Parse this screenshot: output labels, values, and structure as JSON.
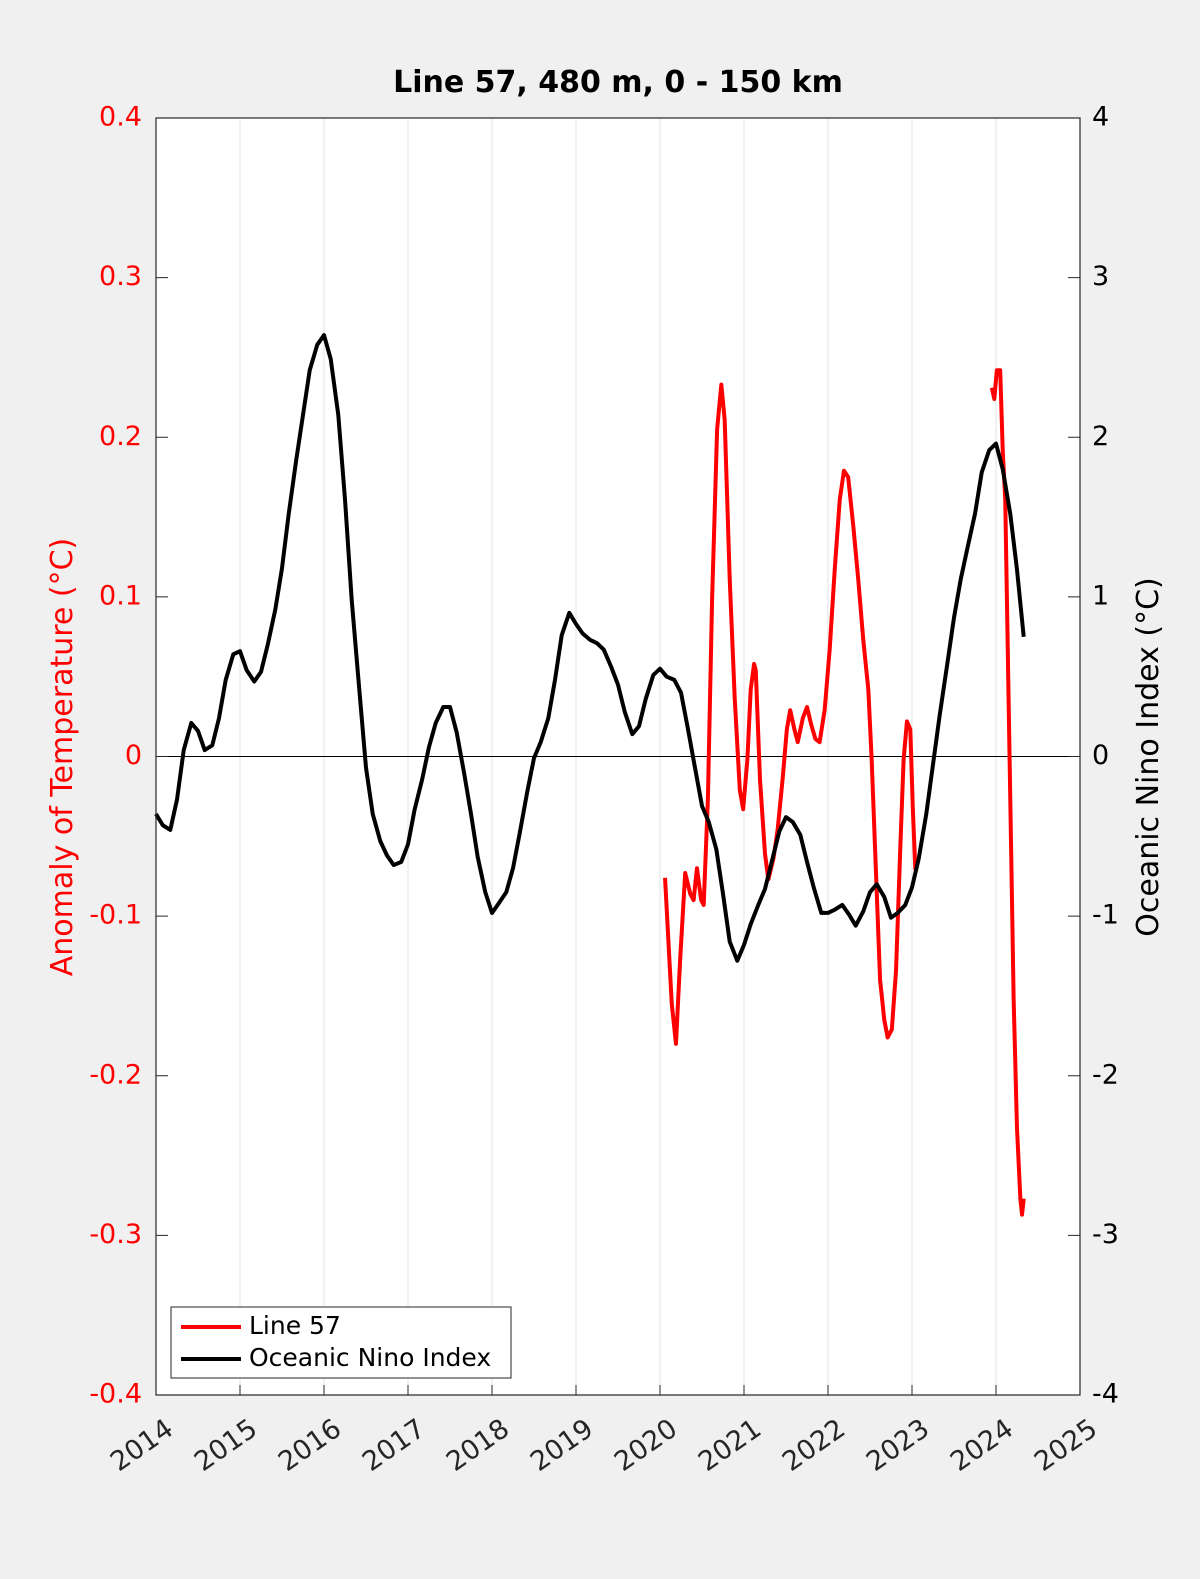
{
  "chart_data": {
    "type": "line",
    "title": "Line 57, 480 m, 0 - 150 km",
    "y_label": "Anomaly of Temperature (°C)",
    "y2_label": "Oceanic Nino Index (°C)",
    "xlim": [
      2014,
      2025
    ],
    "xticks": [
      2014,
      2015,
      2016,
      2017,
      2018,
      2019,
      2020,
      2021,
      2022,
      2023,
      2024,
      2025
    ],
    "ylim": [
      -0.4,
      0.4
    ],
    "yticks": [
      -0.4,
      -0.3,
      -0.2,
      -0.1,
      0,
      0.1,
      0.2,
      0.3,
      0.4
    ],
    "y2lim": [
      -4,
      4
    ],
    "y2ticks": [
      -4,
      -3,
      -2,
      -1,
      0,
      1,
      2,
      3,
      4
    ],
    "grid": true,
    "legend": "lower left",
    "y_color": "#ff0000",
    "y2_color": "#000000",
    "series": [
      {
        "name": "Line 57",
        "color": "#ff0000",
        "x": [
          2020.06,
          2020.14,
          2020.19,
          2020.24,
          2020.3,
          2020.36,
          2020.4,
          2020.44,
          2020.49,
          2020.52,
          2020.57,
          2020.62,
          2020.68,
          2020.73,
          2020.77,
          2020.83,
          2020.89,
          2020.95,
          2020.99,
          2021.04,
          2021.08,
          2021.12,
          2021.14,
          2021.19,
          2021.25,
          2021.29,
          2021.35,
          2021.4,
          2021.46,
          2021.51,
          2021.55,
          2021.6,
          2021.64,
          2021.7,
          2021.75,
          2021.8,
          2021.85,
          2021.9,
          2021.96,
          2022.02,
          2022.08,
          2022.14,
          2022.19,
          2022.24,
          2022.3,
          2022.36,
          2022.42,
          2022.48,
          2022.52,
          2022.57,
          2022.62,
          2022.67,
          2022.71,
          2022.76,
          2022.81,
          2022.86,
          2022.9,
          2022.94,
          2022.98,
          2023.01,
          2023.04,
          2023.5,
          2023.95,
          2023.98,
          2024.01,
          2024.05,
          2024.08,
          2024.11,
          2024.14,
          2024.18,
          2024.21,
          2024.25,
          2024.29,
          2024.31,
          2024.33
        ],
        "values": [
          -0.076,
          -0.155,
          -0.18,
          -0.127,
          -0.073,
          -0.086,
          -0.09,
          -0.07,
          -0.09,
          -0.093,
          -0.027,
          0.098,
          0.205,
          0.233,
          0.211,
          0.111,
          0.036,
          -0.021,
          -0.033,
          -0.002,
          0.042,
          0.058,
          0.054,
          -0.014,
          -0.061,
          -0.077,
          -0.064,
          -0.046,
          -0.014,
          0.017,
          0.029,
          0.017,
          0.009,
          0.024,
          0.031,
          0.02,
          0.011,
          0.009,
          0.029,
          0.067,
          0.117,
          0.161,
          0.179,
          0.175,
          0.145,
          0.111,
          0.073,
          0.042,
          -0.002,
          -0.071,
          -0.14,
          -0.165,
          -0.176,
          -0.171,
          -0.134,
          -0.058,
          -0.002,
          0.022,
          0.017,
          -0.033,
          -0.071,
          null,
          0.231,
          0.224,
          0.242,
          0.242,
          0.192,
          0.161,
          0.067,
          -0.058,
          -0.152,
          -0.233,
          -0.277,
          -0.287,
          -0.277
        ]
      },
      {
        "name": "Oceanic Nino Index",
        "color": "#000000",
        "axis": "y2",
        "x": [
          2014,
          2014.08,
          2014.17,
          2014.25,
          2014.33,
          2014.42,
          2014.5,
          2014.58,
          2014.67,
          2014.75,
          2014.83,
          2014.92,
          2015,
          2015.08,
          2015.17,
          2015.25,
          2015.33,
          2015.42,
          2015.5,
          2015.58,
          2015.67,
          2015.75,
          2015.83,
          2015.92,
          2016,
          2016.08,
          2016.17,
          2016.25,
          2016.33,
          2016.42,
          2016.5,
          2016.58,
          2016.67,
          2016.75,
          2016.83,
          2016.92,
          2017,
          2017.08,
          2017.17,
          2017.25,
          2017.33,
          2017.42,
          2017.5,
          2017.58,
          2017.67,
          2017.75,
          2017.83,
          2017.92,
          2018,
          2018.08,
          2018.17,
          2018.25,
          2018.33,
          2018.42,
          2018.5,
          2018.58,
          2018.67,
          2018.75,
          2018.83,
          2018.92,
          2019,
          2019.08,
          2019.17,
          2019.25,
          2019.33,
          2019.42,
          2019.5,
          2019.58,
          2019.67,
          2019.75,
          2019.83,
          2019.92,
          2020,
          2020.08,
          2020.17,
          2020.25,
          2020.33,
          2020.42,
          2020.5,
          2020.58,
          2020.67,
          2020.75,
          2020.83,
          2020.92,
          2021,
          2021.08,
          2021.17,
          2021.25,
          2021.33,
          2021.42,
          2021.5,
          2021.58,
          2021.67,
          2021.75,
          2021.83,
          2021.92,
          2022,
          2022.08,
          2022.17,
          2022.25,
          2022.33,
          2022.42,
          2022.5,
          2022.58,
          2022.67,
          2022.75,
          2022.83,
          2022.92,
          2023,
          2023.08,
          2023.17,
          2023.25,
          2023.33,
          2023.42,
          2023.5,
          2023.58,
          2023.67,
          2023.75,
          2023.83,
          2023.92,
          2024,
          2024.08,
          2024.17,
          2024.25,
          2024.33
        ],
        "values": [
          -0.36,
          -0.43,
          -0.46,
          -0.27,
          0.04,
          0.21,
          0.16,
          0.04,
          0.07,
          0.24,
          0.48,
          0.64,
          0.66,
          0.54,
          0.47,
          0.53,
          0.7,
          0.92,
          1.18,
          1.52,
          1.86,
          2.14,
          2.42,
          2.58,
          2.64,
          2.49,
          2.14,
          1.61,
          0.98,
          0.42,
          -0.07,
          -0.36,
          -0.53,
          -0.62,
          -0.68,
          -0.66,
          -0.55,
          -0.33,
          -0.14,
          0.06,
          0.21,
          0.31,
          0.31,
          0.15,
          -0.11,
          -0.36,
          -0.63,
          -0.85,
          -0.98,
          -0.92,
          -0.85,
          -0.7,
          -0.48,
          -0.22,
          -0.01,
          0.09,
          0.24,
          0.48,
          0.76,
          0.9,
          0.83,
          0.77,
          0.73,
          0.71,
          0.67,
          0.56,
          0.45,
          0.28,
          0.14,
          0.19,
          0.36,
          0.51,
          0.55,
          0.5,
          0.48,
          0.4,
          0.18,
          -0.08,
          -0.31,
          -0.41,
          -0.58,
          -0.86,
          -1.16,
          -1.28,
          -1.18,
          -1.05,
          -0.93,
          -0.83,
          -0.66,
          -0.47,
          -0.38,
          -0.41,
          -0.49,
          -0.66,
          -0.82,
          -0.98,
          -0.98,
          -0.96,
          -0.93,
          -0.99,
          -1.06,
          -0.97,
          -0.85,
          -0.8,
          -0.88,
          -1.01,
          -0.98,
          -0.93,
          -0.82,
          -0.64,
          -0.36,
          -0.05,
          0.26,
          0.58,
          0.87,
          1.11,
          1.33,
          1.52,
          1.78,
          1.92,
          1.96,
          1.8,
          1.52,
          1.17,
          0.75
        ]
      }
    ]
  }
}
